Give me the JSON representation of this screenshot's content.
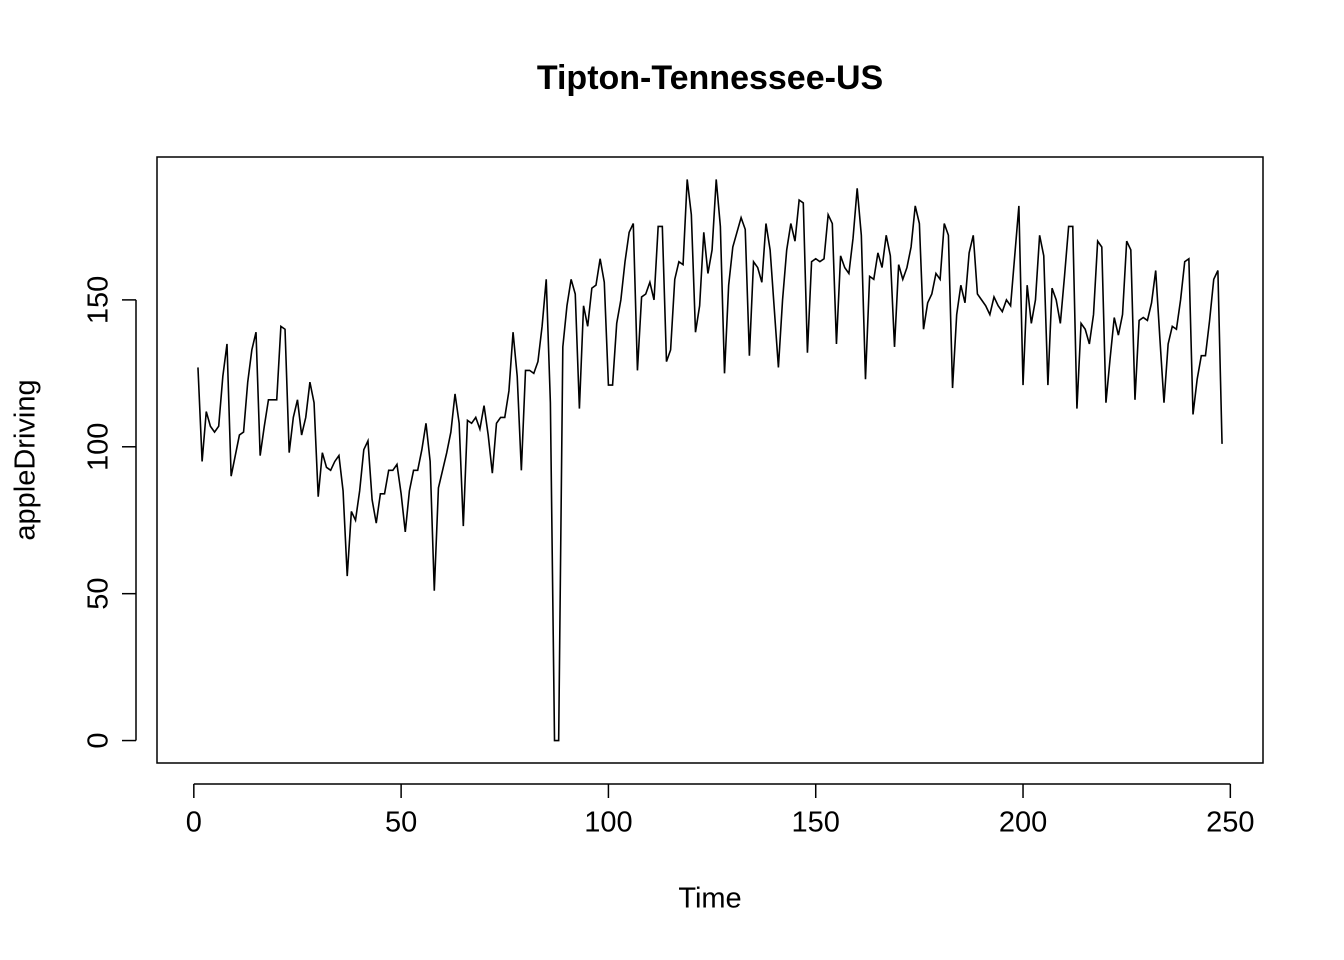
{
  "chart_data": {
    "type": "line",
    "title": "Tipton-Tennessee-US",
    "x_label": "Time",
    "y_label": "appleDriving",
    "color": "#000000",
    "x": [
      1,
      2,
      3,
      4,
      5,
      6,
      7,
      8,
      9,
      10,
      11,
      12,
      13,
      14,
      15,
      16,
      17,
      18,
      19,
      20,
      21,
      22,
      23,
      24,
      25,
      26,
      27,
      28,
      29,
      30,
      31,
      32,
      33,
      34,
      35,
      36,
      37,
      38,
      39,
      40,
      41,
      42,
      43,
      44,
      45,
      46,
      47,
      48,
      49,
      50,
      51,
      52,
      53,
      54,
      55,
      56,
      57,
      58,
      59,
      60,
      61,
      62,
      63,
      64,
      65,
      66,
      67,
      68,
      69,
      70,
      71,
      72,
      73,
      74,
      75,
      76,
      77,
      78,
      79,
      80,
      81,
      82,
      83,
      84,
      85,
      86,
      87,
      88,
      89,
      90,
      91,
      92,
      93,
      94,
      95,
      96,
      97,
      98,
      99,
      100,
      101,
      102,
      103,
      104,
      105,
      106,
      107,
      108,
      109,
      110,
      111,
      112,
      113,
      114,
      115,
      116,
      117,
      118,
      119,
      120,
      121,
      122,
      123,
      124,
      125,
      126,
      127,
      128,
      129,
      130,
      131,
      132,
      133,
      134,
      135,
      136,
      137,
      138,
      139,
      140,
      141,
      142,
      143,
      144,
      145,
      146,
      147,
      148,
      149,
      150,
      151,
      152,
      153,
      154,
      155,
      156,
      157,
      158,
      159,
      160,
      161,
      162,
      163,
      164,
      165,
      166,
      167,
      168,
      169,
      170,
      171,
      172,
      173,
      174,
      175,
      176,
      177,
      178,
      179,
      180,
      181,
      182,
      183,
      184,
      185,
      186,
      187,
      188,
      189,
      190,
      191,
      192,
      193,
      194,
      195,
      196,
      197,
      198,
      199,
      200,
      201,
      202,
      203,
      204,
      205,
      206,
      207,
      208,
      209,
      210,
      211,
      212,
      213,
      214,
      215,
      216,
      217,
      218,
      219,
      220,
      221,
      222,
      223,
      224,
      225,
      226,
      227,
      228,
      229,
      230,
      231,
      232,
      233,
      234,
      235,
      236,
      237,
      238,
      239,
      240,
      241,
      242,
      243,
      244,
      245,
      246,
      247,
      248
    ],
    "values": [
      127,
      95,
      112,
      107,
      105,
      107,
      124,
      135,
      90,
      97,
      104,
      105,
      122,
      133,
      139,
      97,
      107,
      116,
      116,
      116,
      141,
      140,
      98,
      110,
      116,
      104,
      110,
      122,
      115,
      83,
      98,
      93,
      92,
      95,
      97,
      85,
      56,
      78,
      75,
      85,
      99,
      102,
      82,
      74,
      84,
      84,
      92,
      92,
      94,
      84,
      71,
      85,
      92,
      92,
      99,
      108,
      95,
      51,
      86,
      92,
      98,
      105,
      118,
      108,
      73,
      109,
      108,
      110,
      106,
      114,
      104,
      91,
      108,
      110,
      110,
      119,
      139,
      124,
      92,
      126,
      126,
      125,
      129,
      141,
      157,
      115,
      0,
      0,
      134,
      148,
      157,
      152,
      113,
      148,
      141,
      154,
      155,
      164,
      156,
      121,
      121,
      142,
      150,
      163,
      173,
      176,
      126,
      151,
      152,
      156,
      150,
      175,
      175,
      129,
      133,
      157,
      163,
      162,
      191,
      179,
      139,
      148,
      173,
      159,
      167,
      191,
      175,
      125,
      155,
      168,
      173,
      178,
      174,
      131,
      163,
      161,
      156,
      176,
      167,
      147,
      127,
      150,
      167,
      176,
      170,
      184,
      183,
      132,
      163,
      164,
      163,
      164,
      179,
      176,
      135,
      165,
      161,
      159,
      171,
      188,
      172,
      123,
      158,
      157,
      166,
      161,
      172,
      165,
      134,
      162,
      157,
      161,
      168,
      182,
      176,
      140,
      149,
      152,
      159,
      157,
      176,
      172,
      120,
      145,
      155,
      149,
      166,
      172,
      152,
      150,
      148,
      145,
      151,
      148,
      146,
      150,
      148,
      165,
      182,
      121,
      155,
      142,
      150,
      172,
      165,
      121,
      154,
      150,
      142,
      158,
      175,
      175,
      113,
      142,
      140,
      135,
      145,
      170,
      168,
      115,
      130,
      144,
      138,
      145,
      170,
      167,
      116,
      143,
      144,
      143,
      149,
      160,
      137,
      115,
      135,
      141,
      140,
      150,
      163,
      164,
      111,
      123,
      131,
      131,
      143,
      157,
      160,
      101
    ],
    "xlim": [
      -8.88,
      257.88
    ],
    "ylim": [
      -7.64,
      198.64
    ],
    "xticks": [
      0,
      50,
      100,
      150,
      200,
      250
    ],
    "yticks": [
      0,
      50,
      100,
      150
    ]
  }
}
